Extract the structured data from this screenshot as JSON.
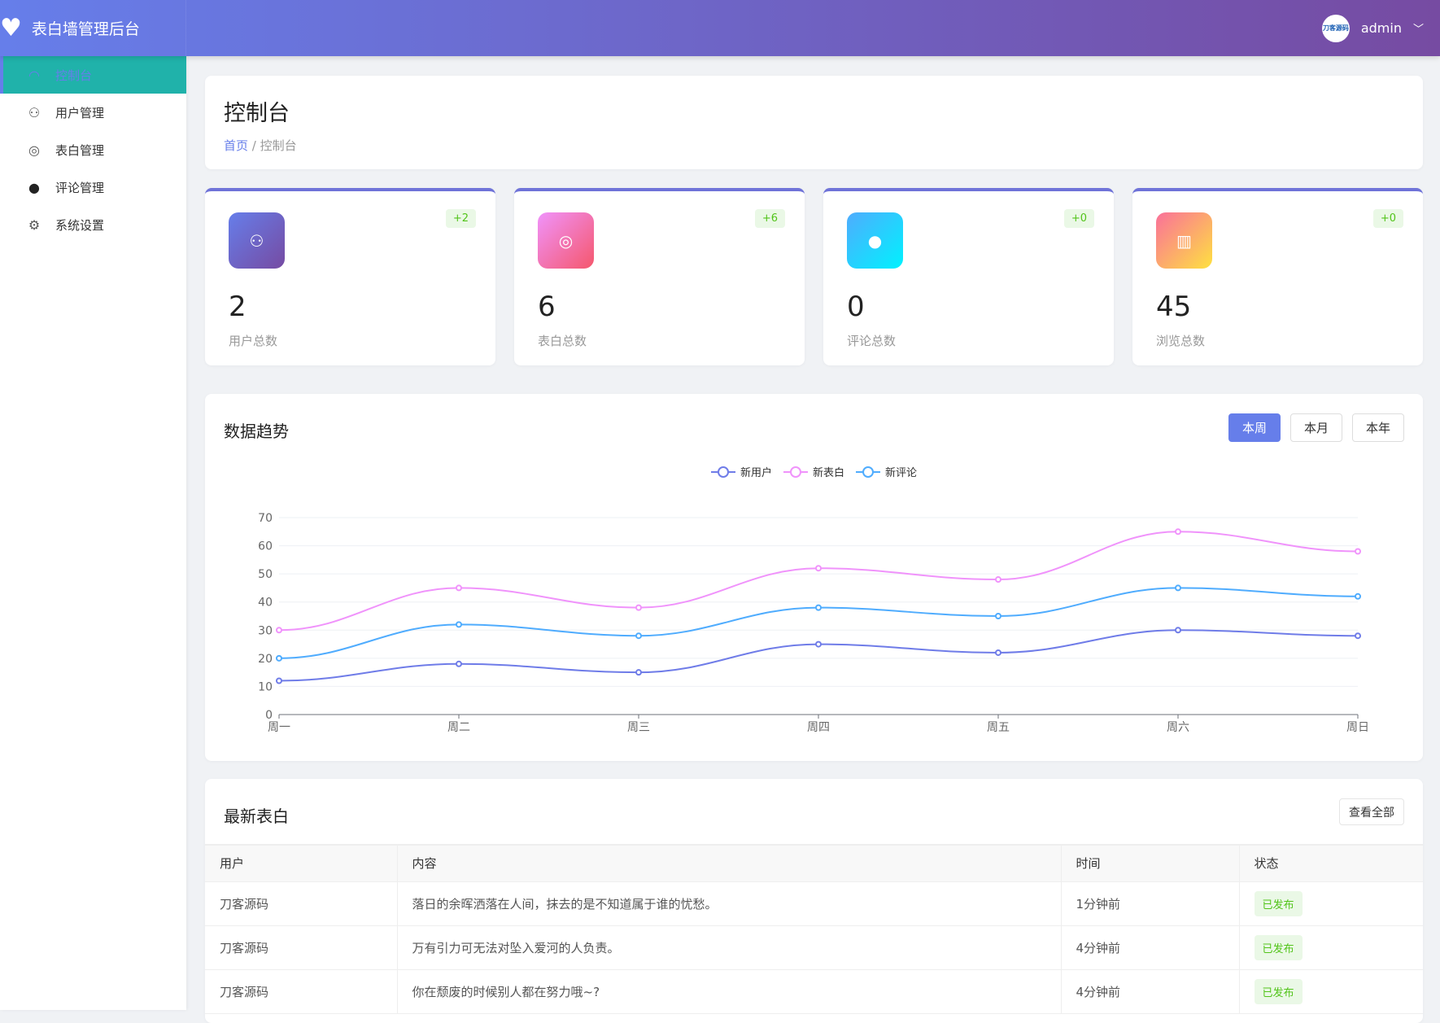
{
  "app": {
    "title": "表白墙管理后台",
    "user": "admin",
    "avatar_text": "刀客源码"
  },
  "sidebar": {
    "items": [
      {
        "label": "控制台",
        "icon": "dashboard-icon",
        "active": true
      },
      {
        "label": "用户管理",
        "icon": "user-icon"
      },
      {
        "label": "表白管理",
        "icon": "chat-bubbles-icon"
      },
      {
        "label": "评论管理",
        "icon": "comment-icon"
      },
      {
        "label": "系统设置",
        "icon": "gear-icon"
      }
    ]
  },
  "page": {
    "title": "控制台",
    "breadcrumb": {
      "home": "首页",
      "sep": "/",
      "current": "控制台"
    }
  },
  "stats": [
    {
      "value": "2",
      "label": "用户总数",
      "delta": "+2",
      "icon": "user-icon",
      "gradient": [
        "#667eea",
        "#764ba2"
      ]
    },
    {
      "value": "6",
      "label": "表白总数",
      "delta": "+6",
      "icon": "chat-bubbles-icon",
      "gradient": [
        "#f093fb",
        "#f5576c"
      ]
    },
    {
      "value": "0",
      "label": "评论总数",
      "delta": "+0",
      "icon": "comment-icon",
      "gradient": [
        "#4facfe",
        "#00f2fe"
      ]
    },
    {
      "value": "45",
      "label": "浏览总数",
      "delta": "+0",
      "icon": "book-icon",
      "gradient": [
        "#fa709a",
        "#fee140"
      ]
    }
  ],
  "trend": {
    "title": "数据趋势",
    "ranges": [
      "本周",
      "本月",
      "本年"
    ],
    "selected": "本周"
  },
  "chart_data": {
    "type": "line",
    "smooth": true,
    "categories": [
      "周一",
      "周二",
      "周三",
      "周四",
      "周五",
      "周六",
      "周日"
    ],
    "ylim": [
      0,
      70
    ],
    "yticks": [
      0,
      10,
      20,
      30,
      40,
      50,
      60,
      70
    ],
    "grid": true,
    "legend": "top-center",
    "series": [
      {
        "name": "新用户",
        "color": "#6f7ce8",
        "values": [
          12,
          18,
          15,
          25,
          22,
          30,
          28
        ]
      },
      {
        "name": "新表白",
        "color": "#f093fb",
        "values": [
          30,
          45,
          38,
          52,
          48,
          65,
          58
        ]
      },
      {
        "name": "新评论",
        "color": "#4facfe",
        "values": [
          20,
          32,
          28,
          38,
          35,
          45,
          42
        ]
      }
    ]
  },
  "latest": {
    "title": "最新表白",
    "view_all": "查看全部",
    "columns": [
      "用户",
      "内容",
      "时间",
      "状态"
    ],
    "rows": [
      {
        "user": "刀客源码",
        "content": "落日的余晖洒落在人间，抹去的是不知道属于谁的忧愁。",
        "time": "1分钟前",
        "status": "已发布"
      },
      {
        "user": "刀客源码",
        "content": "万有引力可无法对坠入爱河的人负责。",
        "time": "4分钟前",
        "status": "已发布"
      },
      {
        "user": "刀客源码",
        "content": "你在颓废的时候别人都在努力哦~?",
        "time": "4分钟前",
        "status": "已发布"
      }
    ]
  }
}
